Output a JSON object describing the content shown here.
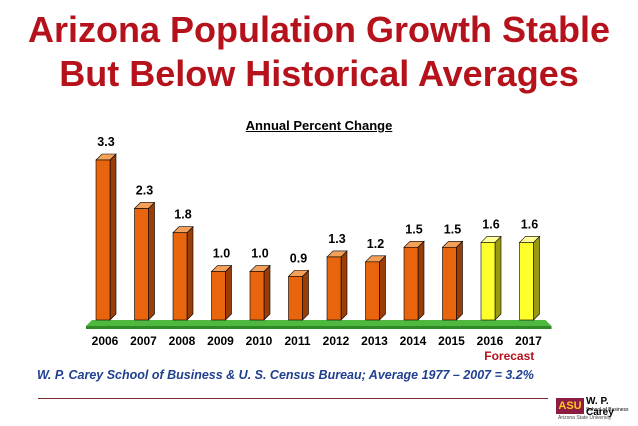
{
  "header": {
    "title_line1": "Arizona Population Growth Stable",
    "title_line2": "But Below Historical Averages"
  },
  "chart_data": {
    "type": "bar",
    "title": "Annual Percent Change",
    "categories": [
      "2006",
      "2007",
      "2008",
      "2009",
      "2010",
      "2011",
      "2012",
      "2013",
      "2014",
      "2015",
      "2016",
      "2017"
    ],
    "values": [
      3.3,
      2.3,
      1.8,
      1.0,
      1.0,
      0.9,
      1.3,
      1.2,
      1.5,
      1.5,
      1.6,
      1.6
    ],
    "value_labels": [
      "3.3",
      "2.3",
      "1.8",
      "1.0",
      "1.0",
      "0.9",
      "1.3",
      "1.2",
      "1.5",
      "1.5",
      "1.6",
      "1.6"
    ],
    "forecast_label": "Forecast",
    "forecast_categories": [
      "2016",
      "2017"
    ],
    "ylim": [
      0,
      3.5
    ],
    "grid": false,
    "colors": {
      "actual_front": "#e8650d",
      "actual_side": "#9a3d06",
      "actual_top": "#f3a05a",
      "forecast_front": "#ffff2b",
      "forecast_side": "#9a9a12",
      "forecast_top": "#ffff99",
      "floor": "#4fb83f"
    }
  },
  "footer": {
    "source": "W. P. Carey School of Business & U. S. Census Bureau; Average 1977 – 2007 = 3.2%"
  },
  "logo": {
    "asu": "ASU",
    "name": "W. P. Carey",
    "school": "School of Business",
    "university": "Arizona State University"
  }
}
